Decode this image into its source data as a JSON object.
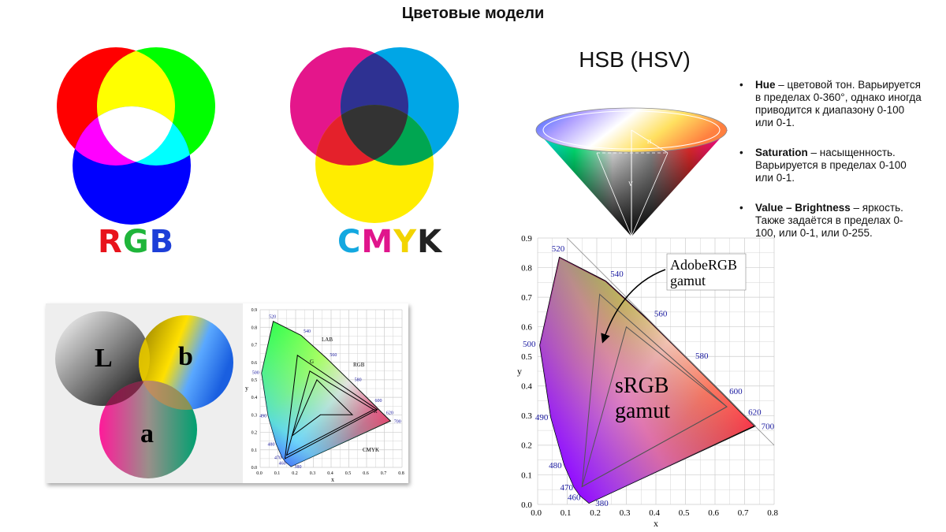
{
  "page": {
    "title": "Цветовые модели"
  },
  "rgb": {
    "label_letters": [
      {
        "char": "R",
        "color": "#e8141c"
      },
      {
        "char": "G",
        "color": "#1fb53a"
      },
      {
        "char": "B",
        "color": "#1d3fd8"
      }
    ]
  },
  "cmyk": {
    "label_letters": [
      {
        "char": "C",
        "color": "#13a8e0"
      },
      {
        "char": "M",
        "color": "#e0158c"
      },
      {
        "char": "Y",
        "color": "#f2d400"
      },
      {
        "char": "K",
        "color": "#222222"
      }
    ]
  },
  "lab": {
    "letters": {
      "l": "L",
      "b": "b",
      "a": "a"
    }
  },
  "hsv": {
    "title": "HSB (HSV)",
    "cone_labels": {
      "v": "V",
      "h": "H"
    },
    "bullets": [
      {
        "term": "Hue",
        "text": " – цветовой тон. Варьируется в пределах 0-360°, однако иногда приводится к диапазону 0-100 или 0-1."
      },
      {
        "term": "Saturation",
        "text": " – насыщенность. Варьируется в пределах 0-100 или 0-1."
      },
      {
        "term": "Value – Brightness",
        "text": " – яркость. Также задаётся в пределах 0-100, или 0-1, или 0-255."
      }
    ]
  },
  "small_chart": {
    "x_ticks": [
      "0.0",
      "0.1",
      "0.2",
      "0.3",
      "0.4",
      "0.5",
      "0.6",
      "0.7",
      "0.8"
    ],
    "y_ticks": [
      "0.0",
      "0.1",
      "0.2",
      "0.3",
      "0.4",
      "0.5",
      "0.6",
      "0.7",
      "0.8",
      "0.9"
    ],
    "xlabel": "x",
    "ylabel": "y",
    "wavelengths": [
      "520",
      "540",
      "560",
      "580",
      "600",
      "620",
      "700",
      "500",
      "490",
      "480",
      "470",
      "460",
      "380"
    ],
    "labels": {
      "lab": "LAB",
      "rgb": "RGB",
      "cmyk": "CMYK",
      "g": "G",
      "r": "R"
    }
  },
  "chart_data": {
    "type": "scatter",
    "title": "",
    "xlabel": "x",
    "ylabel": "y",
    "xlim": [
      0,
      0.8
    ],
    "ylim": [
      0,
      0.9
    ],
    "x_ticks": [
      "0.0",
      "0.1",
      "0.2",
      "0.3",
      "0.4",
      "0.5",
      "0.6",
      "0.7",
      "0.8"
    ],
    "y_ticks": [
      "0.0",
      "0.1",
      "0.2",
      "0.3",
      "0.4",
      "0.5",
      "0.6",
      "0.7",
      "0.8",
      "0.9"
    ],
    "grid": true,
    "spectral_locus": [
      {
        "nm": "380",
        "x": 0.174,
        "y": 0.005
      },
      {
        "nm": "460",
        "x": 0.144,
        "y": 0.03
      },
      {
        "nm": "470",
        "x": 0.124,
        "y": 0.058
      },
      {
        "nm": "480",
        "x": 0.091,
        "y": 0.133
      },
      {
        "nm": "490",
        "x": 0.045,
        "y": 0.295
      },
      {
        "nm": "500",
        "x": 0.008,
        "y": 0.538
      },
      {
        "nm": "520",
        "x": 0.074,
        "y": 0.834
      },
      {
        "nm": "540",
        "x": 0.23,
        "y": 0.754
      },
      {
        "nm": "560",
        "x": 0.373,
        "y": 0.624
      },
      {
        "nm": "580",
        "x": 0.512,
        "y": 0.487
      },
      {
        "nm": "600",
        "x": 0.627,
        "y": 0.373
      },
      {
        "nm": "620",
        "x": 0.691,
        "y": 0.308
      },
      {
        "nm": "700",
        "x": 0.735,
        "y": 0.265
      }
    ],
    "series": [
      {
        "name": "AdobeRGB gamut",
        "values": [
          {
            "x": 0.64,
            "y": 0.33
          },
          {
            "x": 0.21,
            "y": 0.71
          },
          {
            "x": 0.15,
            "y": 0.06
          }
        ]
      },
      {
        "name": "sRGB gamut",
        "values": [
          {
            "x": 0.64,
            "y": 0.33
          },
          {
            "x": 0.3,
            "y": 0.6
          },
          {
            "x": 0.15,
            "y": 0.06
          }
        ]
      }
    ],
    "annotations": [
      "AdobeRGB gamut",
      "sRGB gamut"
    ]
  }
}
